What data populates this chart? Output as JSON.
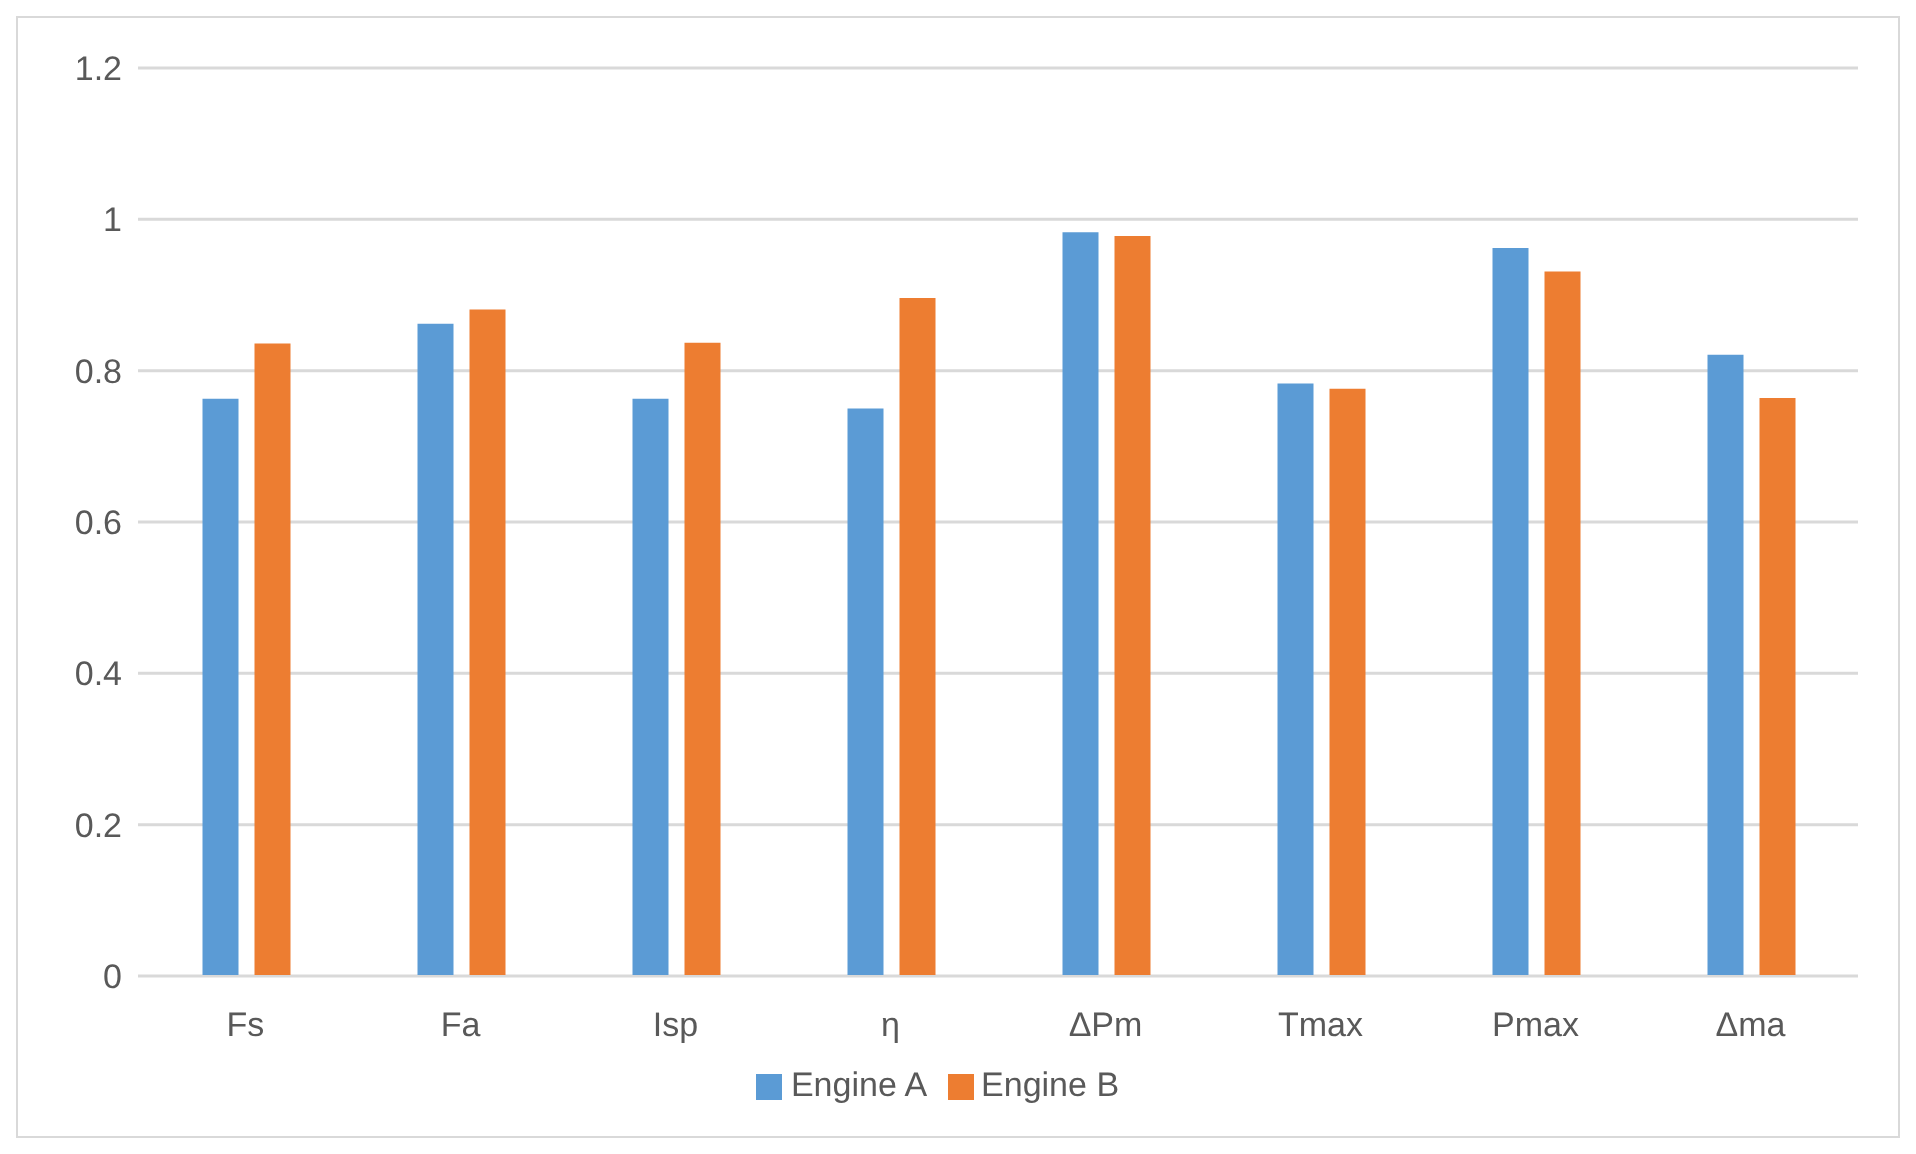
{
  "chart_data": {
    "type": "bar",
    "categories": [
      "Fs",
      "Fa",
      "Isp",
      "η",
      "ΔPm",
      "Tmax",
      "Pmax",
      "Δma"
    ],
    "series": [
      {
        "name": "Engine A",
        "color": "#5b9bd5",
        "values": [
          0.763,
          0.862,
          0.763,
          0.75,
          0.983,
          0.783,
          0.962,
          0.821
        ]
      },
      {
        "name": "Engine B",
        "color": "#ed7d31",
        "values": [
          0.836,
          0.881,
          0.837,
          0.896,
          0.978,
          0.776,
          0.931,
          0.764
        ]
      }
    ],
    "ylim": [
      0,
      1.2
    ],
    "yticks": [
      0,
      {
        "value": 0.2,
        "label": "0.2"
      },
      {
        "value": 0.4,
        "label": "0.4"
      },
      {
        "value": 0.6,
        "label": "0.6"
      },
      {
        "value": 0.8,
        "label": "0.8"
      },
      1,
      {
        "value": 1.2,
        "label": "1.2"
      }
    ],
    "grid": "y",
    "legend": "bottom"
  }
}
